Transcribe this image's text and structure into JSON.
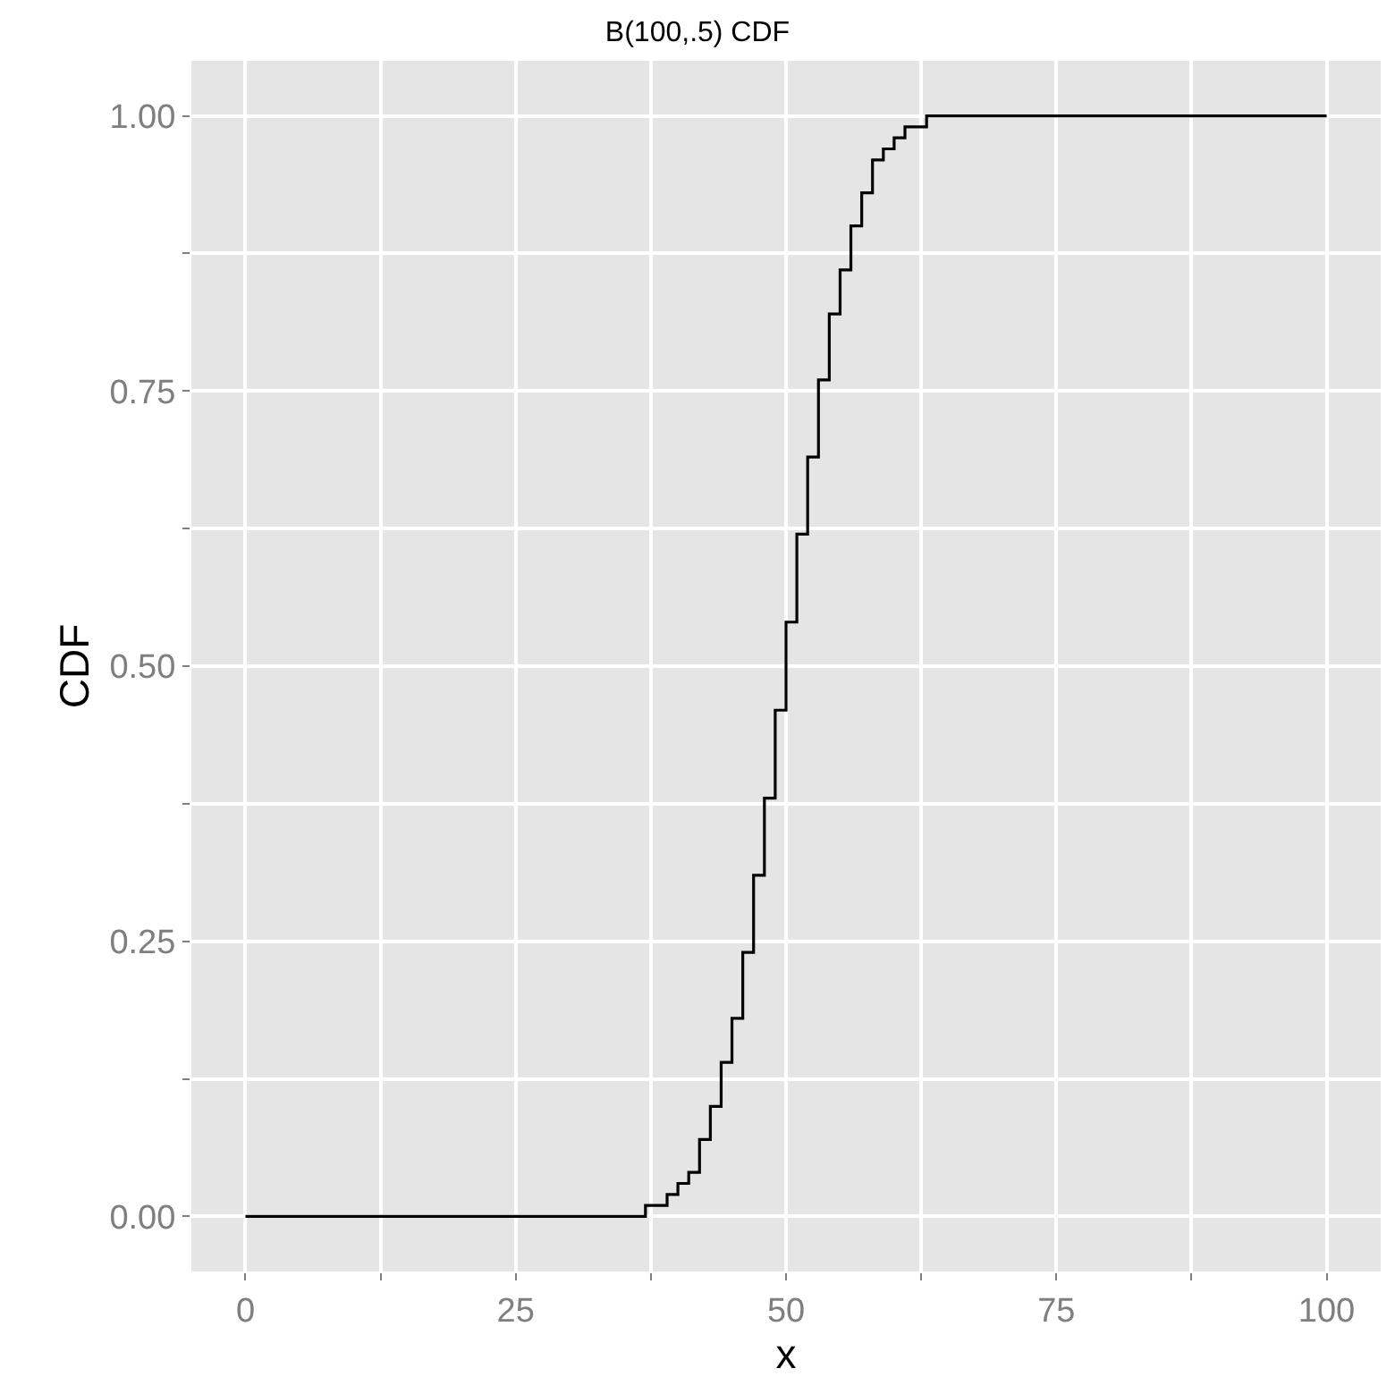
{
  "chart_data": {
    "type": "step",
    "title": "B(100,.5) CDF",
    "xlabel": "x",
    "ylabel": "CDF",
    "x": [
      0,
      37,
      38,
      39,
      40,
      41,
      42,
      43,
      44,
      45,
      46,
      47,
      48,
      49,
      50,
      51,
      52,
      53,
      54,
      55,
      56,
      57,
      58,
      59,
      60,
      61,
      62,
      63,
      100
    ],
    "series": [
      {
        "color": "#000000",
        "values": [
          0,
          0.01,
          0.01,
          0.02,
          0.03,
          0.04,
          0.07,
          0.1,
          0.14,
          0.18,
          0.24,
          0.31,
          0.38,
          0.46,
          0.54,
          0.62,
          0.69,
          0.76,
          0.82,
          0.86,
          0.9,
          0.93,
          0.96,
          0.97,
          0.98,
          0.99,
          0.99,
          1.0,
          1.0
        ]
      }
    ],
    "xlim": [
      -5,
      105
    ],
    "ylim": [
      -0.05,
      1.05
    ],
    "xticks": [
      0,
      {
        "value": 12.5,
        "label": null
      },
      25,
      {
        "value": 37.5,
        "label": null
      },
      50,
      {
        "value": 62.5,
        "label": null
      },
      75,
      {
        "value": 87.5,
        "label": null
      },
      100
    ],
    "yticks": [
      {
        "value": 0,
        "label": "0.00"
      },
      {
        "value": 0.125,
        "label": null
      },
      {
        "value": 0.25,
        "label": "0.25"
      },
      {
        "value": 0.375,
        "label": null
      },
      {
        "value": 0.5,
        "label": "0.50"
      },
      {
        "value": 0.625,
        "label": null
      },
      {
        "value": 0.75,
        "label": "0.75"
      },
      {
        "value": 0.875,
        "label": null
      },
      {
        "value": 1,
        "label": "1.00"
      }
    ],
    "grid": true,
    "legend": false,
    "line_style": "solid"
  }
}
